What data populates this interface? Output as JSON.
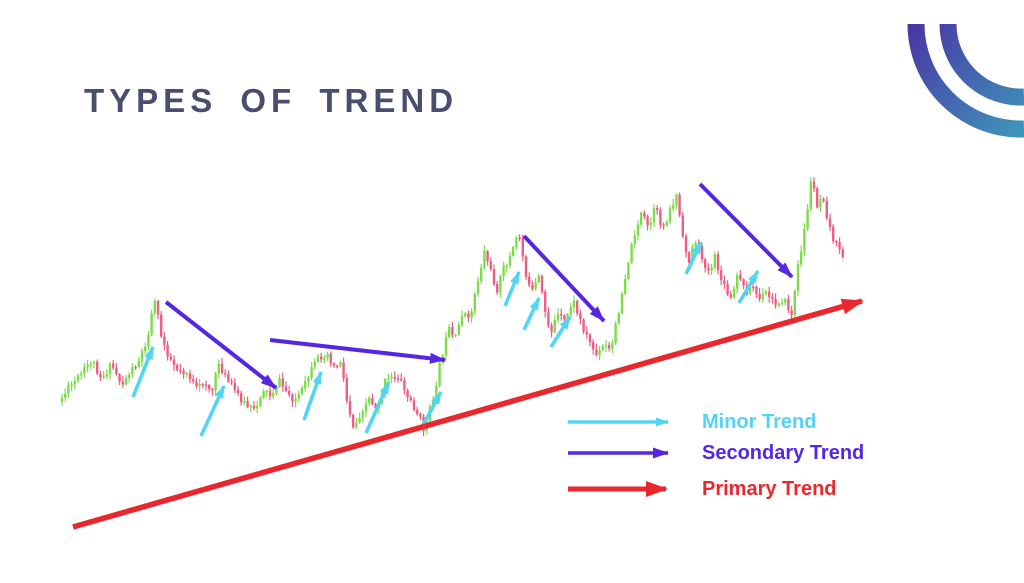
{
  "slide": {
    "title": "TYPES OF TREND",
    "title_color": "#494e6e",
    "background": "#ffffff"
  },
  "logo": {
    "name": "double-arc-brand-logo",
    "gradient_start": "#4a37a4",
    "gradient_end": "#3e95bb"
  },
  "chart_data": {
    "type": "candlestick",
    "title": "",
    "xlabel": "",
    "ylabel": "",
    "axes_visible": false,
    "grid": false,
    "description": "Stylized rising candlestick price series (no axes) annotated with arrows showing minor trends (cyan, short up moves), secondary trends (purple, corrective down moves) and the primary trend (red, long up-sloping arrow).",
    "candle_up_color": "#7ddc4a",
    "candle_down_color": "#ec5e86",
    "candle_spacing": 3.2,
    "candle_body_width": 2.4,
    "noise_seed": 11,
    "x_range": [
      62,
      844
    ],
    "price_path": [
      [
        62,
        402
      ],
      [
        72,
        388
      ],
      [
        84,
        375
      ],
      [
        95,
        360
      ],
      [
        105,
        378
      ],
      [
        115,
        365
      ],
      [
        125,
        385
      ],
      [
        133,
        372
      ],
      [
        142,
        360
      ],
      [
        150,
        340
      ],
      [
        158,
        298
      ],
      [
        164,
        335
      ],
      [
        172,
        356
      ],
      [
        180,
        368
      ],
      [
        190,
        372
      ],
      [
        200,
        390
      ],
      [
        208,
        380
      ],
      [
        215,
        393
      ],
      [
        222,
        363
      ],
      [
        230,
        380
      ],
      [
        240,
        393
      ],
      [
        250,
        406
      ],
      [
        258,
        412
      ],
      [
        266,
        388
      ],
      [
        274,
        396
      ],
      [
        282,
        380
      ],
      [
        290,
        392
      ],
      [
        298,
        400
      ],
      [
        306,
        390
      ],
      [
        314,
        372
      ],
      [
        322,
        358
      ],
      [
        330,
        352
      ],
      [
        338,
        368
      ],
      [
        344,
        360
      ],
      [
        350,
        400
      ],
      [
        357,
        428
      ],
      [
        364,
        412
      ],
      [
        372,
        398
      ],
      [
        380,
        408
      ],
      [
        388,
        382
      ],
      [
        396,
        378
      ],
      [
        402,
        376
      ],
      [
        410,
        396
      ],
      [
        418,
        408
      ],
      [
        428,
        430
      ],
      [
        436,
        400
      ],
      [
        444,
        360
      ],
      [
        452,
        330
      ],
      [
        458,
        342
      ],
      [
        466,
        310
      ],
      [
        472,
        322
      ],
      [
        480,
        285
      ],
      [
        488,
        250
      ],
      [
        494,
        272
      ],
      [
        500,
        290
      ],
      [
        506,
        270
      ],
      [
        514,
        255
      ],
      [
        522,
        233
      ],
      [
        528,
        268
      ],
      [
        534,
        295
      ],
      [
        542,
        278
      ],
      [
        548,
        310
      ],
      [
        554,
        333
      ],
      [
        560,
        315
      ],
      [
        568,
        322
      ],
      [
        576,
        300
      ],
      [
        584,
        322
      ],
      [
        592,
        340
      ],
      [
        600,
        356
      ],
      [
        608,
        345
      ],
      [
        614,
        352
      ],
      [
        622,
        310
      ],
      [
        630,
        268
      ],
      [
        638,
        232
      ],
      [
        645,
        213
      ],
      [
        652,
        230
      ],
      [
        658,
        208
      ],
      [
        666,
        228
      ],
      [
        674,
        208
      ],
      [
        680,
        195
      ],
      [
        686,
        240
      ],
      [
        692,
        262
      ],
      [
        698,
        238
      ],
      [
        704,
        255
      ],
      [
        712,
        272
      ],
      [
        718,
        258
      ],
      [
        726,
        285
      ],
      [
        734,
        300
      ],
      [
        742,
        273
      ],
      [
        748,
        292
      ],
      [
        756,
        286
      ],
      [
        762,
        300
      ],
      [
        770,
        293
      ],
      [
        778,
        305
      ],
      [
        786,
        298
      ],
      [
        795,
        315
      ],
      [
        801,
        268
      ],
      [
        808,
        228
      ],
      [
        815,
        176
      ],
      [
        820,
        205
      ],
      [
        826,
        193
      ],
      [
        832,
        225
      ],
      [
        838,
        242
      ],
      [
        844,
        255
      ]
    ],
    "arrows": {
      "minor": {
        "color": "#52d5f2",
        "width": 3.6,
        "segments": [
          [
            133,
            397,
            153,
            347
          ],
          [
            201,
            436,
            224,
            386
          ],
          [
            304,
            420,
            321,
            372
          ],
          [
            366,
            433,
            389,
            382
          ],
          [
            422,
            427,
            441,
            392
          ],
          [
            505,
            306,
            519,
            272
          ],
          [
            524,
            330,
            539,
            298
          ],
          [
            551,
            347,
            570,
            317
          ],
          [
            686,
            274,
            701,
            242
          ],
          [
            739,
            303,
            758,
            271
          ]
        ]
      },
      "secondary": {
        "color": "#5527e2",
        "width": 4,
        "segments": [
          [
            166,
            302,
            276,
            388
          ],
          [
            270,
            340,
            445,
            360
          ],
          [
            524,
            236,
            604,
            321
          ],
          [
            700,
            184,
            792,
            277
          ]
        ]
      },
      "primary": {
        "color": "#e8282d",
        "width": 5.5,
        "segments": [
          [
            73,
            527,
            862,
            301
          ]
        ]
      }
    }
  },
  "legend": {
    "items": [
      {
        "label": "Minor Trend",
        "color": "#52d5f2",
        "weight": 3.5
      },
      {
        "label": "Secondary Trend",
        "color": "#5527e2",
        "weight": 3.5
      },
      {
        "label": "Primary Trend",
        "color": "#e8282d",
        "weight": 5
      }
    ]
  }
}
